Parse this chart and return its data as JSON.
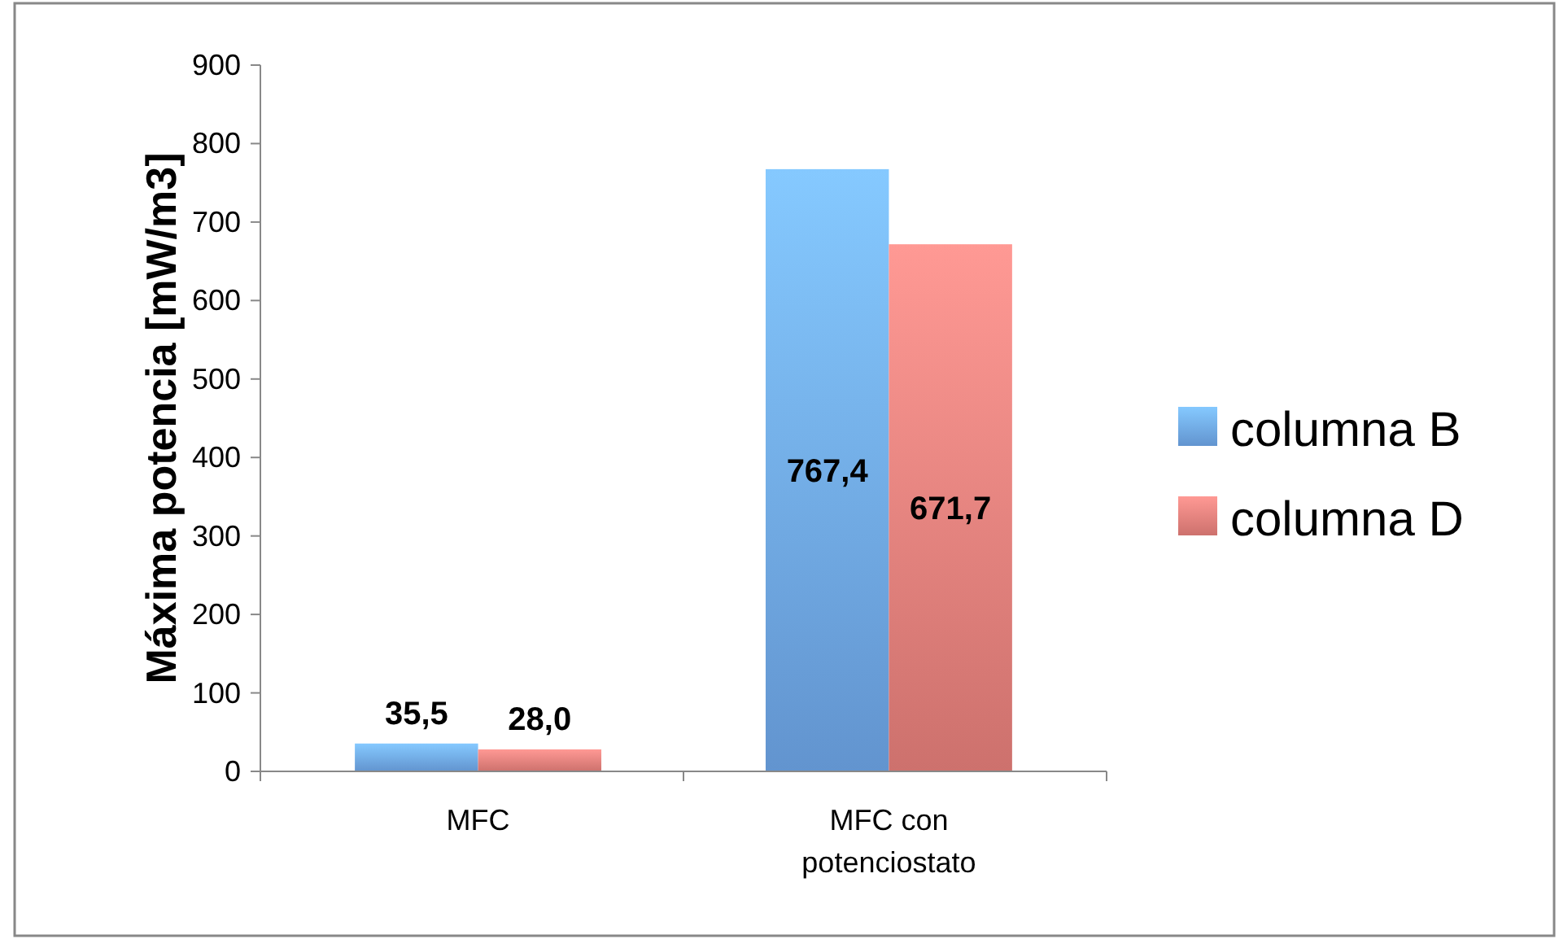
{
  "chart_data": {
    "type": "bar",
    "ylabel": "Máxima potencia  [mW/m3]",
    "categories": [
      "MFC",
      "MFC con potenciostato"
    ],
    "series": [
      {
        "name": "columna B",
        "color": "#6fa8ea",
        "values": [
          35.5,
          767.4
        ],
        "value_labels": [
          "35,5",
          "767,4"
        ]
      },
      {
        "name": "columna D",
        "color": "#e8807c",
        "values": [
          28.0,
          671.7
        ],
        "value_labels": [
          "28,0",
          "671,7"
        ]
      }
    ],
    "ylim": [
      0,
      900
    ],
    "yticks": [
      0,
      100,
      200,
      300,
      400,
      500,
      600,
      700,
      800,
      900
    ],
    "grid": false,
    "legend": "right"
  }
}
